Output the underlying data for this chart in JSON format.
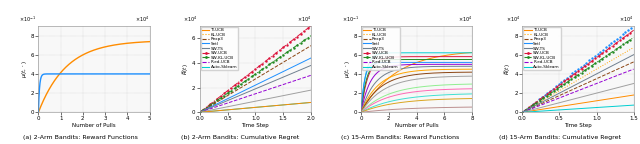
{
  "fig_width": 6.4,
  "fig_height": 1.44,
  "dpi": 100,
  "ax_bg": "#f8f8f8",
  "fig_bg": "#ffffff",
  "subplot_titles": [
    "(a) 2-Arm Bandits: Reward Functions",
    "(b) 2-Arm Bandits: Cumulative Regret",
    "(c) 15-Arm Bandits: Reward Functions",
    "(d) 15-Arm Bandits: Cumulative Regret"
  ],
  "legend_entries": [
    {
      "label": "TI-UCB",
      "color": "#ff8c00",
      "ls": "-",
      "lw": 0.9,
      "marker": null
    },
    {
      "label": "KL-UCB",
      "color": "#ffa500",
      "ls": ":",
      "lw": 0.9,
      "marker": null
    },
    {
      "label": "Rexp3",
      "color": "#8b4513",
      "ls": "--",
      "lw": 0.9,
      "marker": null
    },
    {
      "label": "SetI",
      "color": "#1e90ff",
      "ls": "-",
      "lw": 0.9,
      "marker": null
    },
    {
      "label": "SW-TS",
      "color": "#708090",
      "ls": "-",
      "lw": 0.9,
      "marker": null
    },
    {
      "label": "SW-UCB",
      "color": "#dc143c",
      "ls": "-.",
      "lw": 0.9,
      "marker": "o"
    },
    {
      "label": "SW-KL-UCB",
      "color": "#228b22",
      "ls": "-.",
      "lw": 0.9,
      "marker": "o"
    },
    {
      "label": "R-ed-UCB",
      "color": "#9400d3",
      "ls": "--",
      "lw": 0.9,
      "marker": null
    },
    {
      "label": "Auto-Sklearn",
      "color": "#00ced1",
      "ls": "-",
      "lw": 0.9,
      "marker": null
    }
  ],
  "panel_a": {
    "orange_rate": 8e-05,
    "orange_asym": 7.5,
    "blue_rate": 0.002,
    "blue_asym": 4.0,
    "orange_color": "#ff8c00",
    "blue_color": "#1e90ff",
    "xlim": [
      0,
      5
    ],
    "ylim": [
      0,
      9
    ],
    "yticks": [
      0,
      2,
      4,
      6,
      8
    ],
    "xticks": [
      0,
      1,
      2,
      3,
      4,
      5
    ],
    "xlabel": "Number of Pulls",
    "ylabel": "$\\mu(t,\\cdot)$",
    "x_exp": "4",
    "y_exp": "-1"
  },
  "panel_b": {
    "xlim": [
      0,
      2.0
    ],
    "ylim": [
      0,
      7
    ],
    "yticks": [
      0,
      2,
      4,
      6
    ],
    "xticks": [
      0.0,
      0.5,
      1.0,
      1.5,
      2.0
    ],
    "xlabel": "Time Step",
    "ylabel": "$\\widehat{R}(t)$",
    "x_exp": "4",
    "y_exp": "4",
    "curves": [
      {
        "color": "#dc143c",
        "ls": "-.",
        "slope": 3.4,
        "noisy": true,
        "marker": "o"
      },
      {
        "color": "#228b22",
        "ls": "-.",
        "slope": 3.0,
        "noisy": true,
        "marker": "o"
      },
      {
        "color": "#8b4513",
        "ls": "--",
        "slope": 2.7,
        "noisy": false,
        "marker": null
      },
      {
        "color": "#1e90ff",
        "ls": "-",
        "slope": 2.2,
        "noisy": false,
        "marker": null
      },
      {
        "color": "#708090",
        "ls": "-",
        "slope": 1.9,
        "noisy": false,
        "marker": null
      },
      {
        "color": "#9400d3",
        "ls": "--",
        "slope": 1.5,
        "noisy": false,
        "marker": null
      },
      {
        "color": "#a0a0a0",
        "ls": "-",
        "slope": 0.9,
        "noisy": false,
        "marker": null
      },
      {
        "color": "#00ced1",
        "ls": "-",
        "slope": 0.4,
        "noisy": false,
        "marker": null
      },
      {
        "color": "#ff8c00",
        "ls": "-",
        "slope": 0.4,
        "noisy": false,
        "marker": null
      }
    ]
  },
  "panel_c": {
    "xlim": [
      0,
      8
    ],
    "ylim": [
      0,
      9
    ],
    "yticks": [
      0,
      2,
      4,
      6,
      8
    ],
    "xticks": [
      0,
      2,
      4,
      6,
      8
    ],
    "xlabel": "Number of Pulls",
    "ylabel": "$\\mu(t,\\cdot)$",
    "x_exp": "4",
    "y_exp": "-1",
    "colors": [
      "#ff8c00",
      "#00ced1",
      "#dc143c",
      "#228b22",
      "#1e90ff",
      "#9400d3",
      "#708090",
      "#ffa500",
      "#8b4513",
      "#a0a0a0",
      "#90ee90",
      "#ff69b4",
      "#40e0d0",
      "#daa520",
      "#bc8f8f"
    ],
    "asyms": [
      6.5,
      6.2,
      5.8,
      5.5,
      5.2,
      5.0,
      4.8,
      4.5,
      4.2,
      3.8,
      3.0,
      2.5,
      2.0,
      1.5,
      0.6
    ],
    "rates": [
      4e-05,
      0.0003,
      0.0002,
      0.00025,
      0.0004,
      0.00015,
      0.0001,
      8e-05,
      7e-05,
      6e-05,
      5e-05,
      5e-05,
      4e-05,
      4e-05,
      3e-05
    ]
  },
  "panel_d": {
    "xlim": [
      0,
      1.5
    ],
    "ylim": [
      0,
      9
    ],
    "yticks": [
      0,
      2,
      4,
      6,
      8
    ],
    "xticks": [
      0.0,
      0.5,
      1.0,
      1.5
    ],
    "xlabel": "Time Step",
    "ylabel": "$\\widehat{R}(t)$",
    "x_exp": "4",
    "y_exp": "4",
    "curves": [
      {
        "color": "#1e90ff",
        "ls": "-",
        "slope": 6.0,
        "noisy": false,
        "marker": "+"
      },
      {
        "color": "#ffa500",
        "ls": ":",
        "slope": 4.5,
        "noisy": false,
        "marker": null
      },
      {
        "color": "#ff8c00",
        "ls": "-",
        "slope": 1.2,
        "noisy": false,
        "marker": null
      },
      {
        "color": "#8b4513",
        "ls": "--",
        "slope": 3.5,
        "noisy": false,
        "marker": null
      },
      {
        "color": "#dc143c",
        "ls": "-.",
        "slope": 5.5,
        "noisy": true,
        "marker": "o"
      },
      {
        "color": "#228b22",
        "ls": "-.",
        "slope": 5.0,
        "noisy": true,
        "marker": "o"
      },
      {
        "color": "#708090",
        "ls": "-",
        "slope": 4.0,
        "noisy": false,
        "marker": null
      },
      {
        "color": "#9400d3",
        "ls": "--",
        "slope": 3.0,
        "noisy": false,
        "marker": null
      },
      {
        "color": "#a0a0a0",
        "ls": "-",
        "slope": 2.0,
        "noisy": false,
        "marker": null
      },
      {
        "color": "#00ced1",
        "ls": "-",
        "slope": 0.5,
        "noisy": false,
        "marker": null
      }
    ]
  }
}
